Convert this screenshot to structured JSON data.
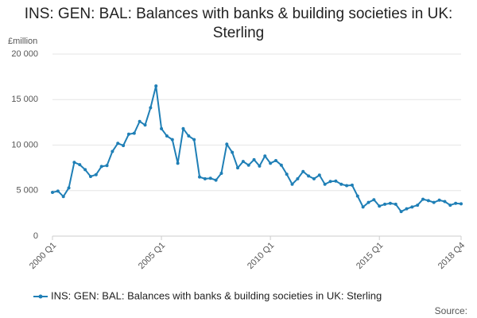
{
  "chart_data": {
    "type": "line",
    "title": "INS: GEN: BAL: Balances with banks & building societies in UK: Sterling",
    "y_label": "£million",
    "source": "Source:",
    "categories": [
      "2000 Q1",
      null,
      null,
      null,
      null,
      null,
      null,
      null,
      null,
      null,
      null,
      null,
      null,
      null,
      null,
      null,
      null,
      null,
      null,
      null,
      "2005 Q1",
      null,
      null,
      null,
      null,
      null,
      null,
      null,
      null,
      null,
      null,
      null,
      null,
      null,
      null,
      null,
      null,
      null,
      null,
      null,
      "2010 Q1",
      null,
      null,
      null,
      null,
      null,
      null,
      null,
      null,
      null,
      null,
      null,
      null,
      null,
      null,
      null,
      null,
      null,
      null,
      null,
      "2015 Q1",
      null,
      null,
      null,
      null,
      null,
      null,
      null,
      null,
      null,
      null,
      null,
      null,
      null,
      null,
      "2018 Q4"
    ],
    "series": [
      {
        "name": "INS: GEN: BAL: Balances with banks & building societies in UK: Sterling",
        "color": "#1f7fb6",
        "values": [
          4800,
          4950,
          4350,
          5300,
          8100,
          7850,
          7300,
          6550,
          6750,
          7650,
          7750,
          9300,
          10200,
          9950,
          11200,
          11300,
          12600,
          12200,
          14100,
          16500,
          11800,
          11000,
          10600,
          8000,
          11800,
          11000,
          10600,
          6500,
          6300,
          6350,
          6150,
          6900,
          10100,
          9200,
          7500,
          8200,
          7800,
          8400,
          7700,
          8800,
          8000,
          8300,
          7800,
          6800,
          5700,
          6300,
          7100,
          6600,
          6300,
          6700,
          5700,
          6000,
          6050,
          5700,
          5550,
          5600,
          4400,
          3200,
          3700,
          4000,
          3300,
          3500,
          3600,
          3500,
          2700,
          3000,
          3200,
          3400,
          4050,
          3900,
          3700,
          3950,
          3800,
          3400,
          3600,
          3550
        ]
      }
    ],
    "ylim": [
      0,
      20000
    ],
    "yticks": [
      0,
      {
        "value": 5000,
        "label": "5 000"
      },
      {
        "value": 10000,
        "label": "10 000"
      },
      {
        "value": 15000,
        "label": "15 000"
      },
      {
        "value": 20000,
        "label": "20 000"
      }
    ],
    "grid": true
  }
}
